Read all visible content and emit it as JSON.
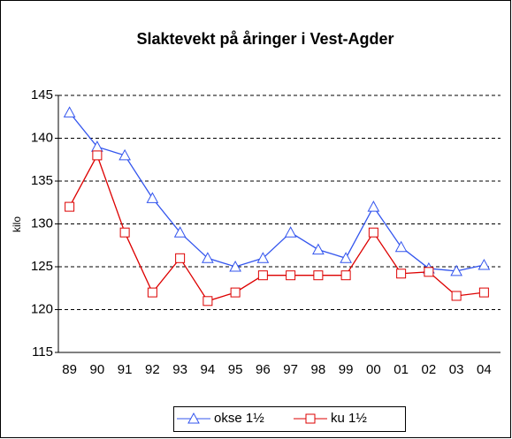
{
  "chart_data": {
    "type": "line",
    "title": "Slaktevekt på åringer i Vest-Agder",
    "y_label": "kilo",
    "categories": [
      "89",
      "90",
      "91",
      "92",
      "93",
      "94",
      "95",
      "96",
      "97",
      "98",
      "99",
      "00",
      "01",
      "02",
      "03",
      "04"
    ],
    "series": [
      {
        "name": "okse 1½",
        "color": "#3355ee",
        "marker": "triangle",
        "values": [
          143,
          139,
          138,
          133,
          129,
          126,
          125,
          126,
          129,
          127,
          126,
          132,
          127.3,
          124.8,
          124.5,
          125.2
        ]
      },
      {
        "name": "ku 1½",
        "color": "#dd0000",
        "marker": "square",
        "values": [
          132,
          138,
          129,
          122,
          126,
          121,
          122,
          124,
          124,
          124,
          124,
          129,
          124.2,
          124.4,
          121.6,
          122
        ]
      }
    ],
    "ylim": [
      115,
      145
    ],
    "yticks": [
      115,
      120,
      125,
      130,
      135,
      140,
      145
    ],
    "grid": true,
    "legend": "bottom"
  }
}
